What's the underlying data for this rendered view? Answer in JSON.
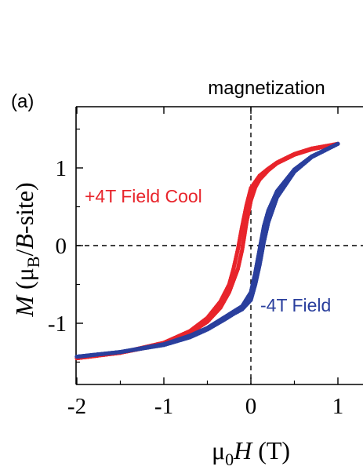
{
  "panel_label": "(a)",
  "colors": {
    "field_cool_positive": "#e8242b",
    "field_cool_negative": "#2a3f9d",
    "axis": "#000000"
  },
  "chart_data": {
    "type": "scatter",
    "title": "magnetization",
    "xlabel": {
      "prefix": "μ",
      "sub": "0",
      "italic": "H",
      "suffix": " (T)"
    },
    "ylabel": {
      "italic": "M",
      "pre": " (μ",
      "sub": "B",
      "mid": "/",
      "italic2": "B",
      "post": "-site)"
    },
    "xlim": [
      -2.0,
      1.0
    ],
    "ylim": [
      -1.75,
      1.65
    ],
    "xticks": [
      -2,
      -1,
      0,
      1
    ],
    "yticks": [
      -1,
      0,
      1
    ],
    "grid": false,
    "reference_lines": [
      {
        "axis": "x",
        "value": 0,
        "style": "dashed"
      },
      {
        "axis": "y",
        "value": 0,
        "style": "dashed"
      }
    ],
    "series": [
      {
        "name": "+4T Field Cool",
        "color": "#e8242b",
        "branches": [
          {
            "x": [
              -2.0,
              -1.5,
              -1.0,
              -0.7,
              -0.5,
              -0.35,
              -0.25,
              -0.15,
              -0.1,
              -0.05,
              0.0,
              0.05,
              0.1,
              0.2,
              0.3,
              0.5,
              0.7,
              1.0
            ],
            "y": [
              -1.45,
              -1.38,
              -1.27,
              -1.13,
              -0.98,
              -0.8,
              -0.6,
              -0.3,
              -0.05,
              0.3,
              0.58,
              0.75,
              0.85,
              0.97,
              1.06,
              1.17,
              1.24,
              1.31
            ]
          },
          {
            "x": [
              -2.0,
              -1.5,
              -1.0,
              -0.7,
              -0.5,
              -0.35,
              -0.25,
              -0.2,
              -0.15,
              -0.1,
              -0.05,
              0.0,
              0.1,
              0.2,
              0.3,
              0.5,
              0.7,
              1.0
            ],
            "y": [
              -1.45,
              -1.38,
              -1.25,
              -1.1,
              -0.93,
              -0.72,
              -0.5,
              -0.3,
              -0.05,
              0.25,
              0.52,
              0.74,
              0.9,
              0.99,
              1.07,
              1.18,
              1.25,
              1.31
            ]
          }
        ]
      },
      {
        "name": "-4T Field",
        "color": "#2a3f9d",
        "branches": [
          {
            "x": [
              -2.0,
              -1.5,
              -1.0,
              -0.7,
              -0.5,
              -0.3,
              -0.2,
              -0.1,
              0.0,
              0.05,
              0.1,
              0.15,
              0.2,
              0.3,
              0.5,
              0.7,
              1.0
            ],
            "y": [
              -1.43,
              -1.37,
              -1.27,
              -1.16,
              -1.06,
              -0.92,
              -0.85,
              -0.78,
              -0.6,
              -0.35,
              -0.05,
              0.25,
              0.45,
              0.7,
              0.98,
              1.15,
              1.31
            ]
          },
          {
            "x": [
              -2.0,
              -1.5,
              -1.0,
              -0.7,
              -0.5,
              -0.3,
              -0.2,
              -0.1,
              0.0,
              0.05,
              0.1,
              0.15,
              0.2,
              0.3,
              0.5,
              0.7,
              1.0
            ],
            "y": [
              -1.43,
              -1.37,
              -1.28,
              -1.18,
              -1.08,
              -0.95,
              -0.88,
              -0.82,
              -0.7,
              -0.5,
              -0.25,
              0.05,
              0.3,
              0.62,
              0.95,
              1.14,
              1.31
            ]
          }
        ]
      }
    ]
  }
}
